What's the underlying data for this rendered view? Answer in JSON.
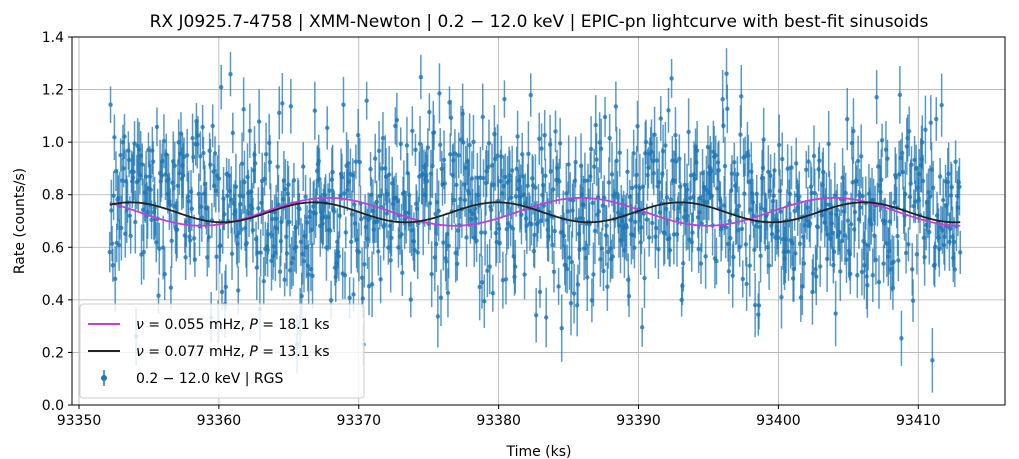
{
  "chart_data": {
    "type": "scatter",
    "title": "RX J0925.7-4758 | XMM-Newton | 0.2 − 12.0 keV | EPIC-pn lightcurve with best-fit sinusoids",
    "xlabel": "Time (ks)",
    "ylabel": "Rate (counts/s)",
    "xlim": [
      93349.5,
      93416.2
    ],
    "ylim": [
      0.0,
      1.4
    ],
    "xticks": [
      93350,
      93360,
      93370,
      93380,
      93390,
      93400,
      93410
    ],
    "yticks": [
      0.0,
      0.2,
      0.4,
      0.6,
      0.8,
      1.0,
      1.2,
      1.4
    ],
    "grid": true,
    "legend_position": "lower-left",
    "data_series": {
      "name": "0.2 − 12.0 keV | RGS",
      "color": "#1f77b4",
      "x_range": [
        93352.2,
        93413.0
      ],
      "n_points": 1100,
      "mean": 0.74,
      "scatter_sd": 0.17,
      "error_range": [
        0.06,
        0.13
      ]
    },
    "series": [
      {
        "name": "ν = 0.055 mHz, P = 18.1 ks",
        "legend_parts": [
          "ν",
          " = 0.055 mHz, ",
          "P",
          " = 18.1 ks"
        ],
        "color": "#c13fd2",
        "period_ks": 18.1,
        "mean": 0.735,
        "amplitude": 0.053,
        "peak_time": 93367.8
      },
      {
        "name": "ν = 0.077 mHz, P = 13.1 ks",
        "legend_parts": [
          "ν",
          " = 0.077 mHz, ",
          "P",
          " = 13.1 ks"
        ],
        "color": "#222222",
        "period_ks": 13.1,
        "mean": 0.733,
        "amplitude": 0.038,
        "peak_time": 93379.9
      }
    ]
  }
}
